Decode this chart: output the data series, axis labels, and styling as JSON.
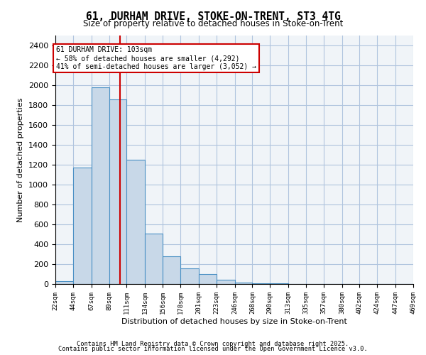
{
  "title_line1": "61, DURHAM DRIVE, STOKE-ON-TRENT, ST3 4TG",
  "title_line2": "Size of property relative to detached houses in Stoke-on-Trent",
  "xlabel": "Distribution of detached houses by size in Stoke-on-Trent",
  "ylabel": "Number of detached properties",
  "bar_color": "#c8d8e8",
  "bar_edge_color": "#4a90c4",
  "grid_color": "#b0c4de",
  "background_color": "#f0f4f8",
  "annotation_line1": "61 DURHAM DRIVE: 103sqm",
  "annotation_line2": "← 58% of detached houses are smaller (4,292)",
  "annotation_line3": "41% of semi-detached houses are larger (3,052) →",
  "vline_color": "#cc0000",
  "vline_x": 103,
  "bin_edges": [
    22,
    44,
    67,
    89,
    111,
    134,
    156,
    178,
    201,
    223,
    246,
    268,
    290,
    313,
    335,
    357,
    380,
    402,
    424,
    447,
    469
  ],
  "values": [
    30,
    1170,
    1980,
    1860,
    1250,
    510,
    280,
    155,
    100,
    40,
    15,
    8,
    5,
    3,
    2,
    1,
    1,
    1,
    0,
    0
  ],
  "categories": [
    "22sqm",
    "44sqm",
    "67sqm",
    "89sqm",
    "111sqm",
    "134sqm",
    "156sqm",
    "178sqm",
    "201sqm",
    "223sqm",
    "246sqm",
    "268sqm",
    "290sqm",
    "313sqm",
    "335sqm",
    "357sqm",
    "380sqm",
    "402sqm",
    "424sqm",
    "447sqm",
    "469sqm"
  ],
  "ylim": [
    0,
    2500
  ],
  "yticks": [
    0,
    200,
    400,
    600,
    800,
    1000,
    1200,
    1400,
    1600,
    1800,
    2000,
    2200,
    2400
  ],
  "footer_line1": "Contains HM Land Registry data © Crown copyright and database right 2025.",
  "footer_line2": "Contains public sector information licensed under the Open Government Licence v3.0."
}
